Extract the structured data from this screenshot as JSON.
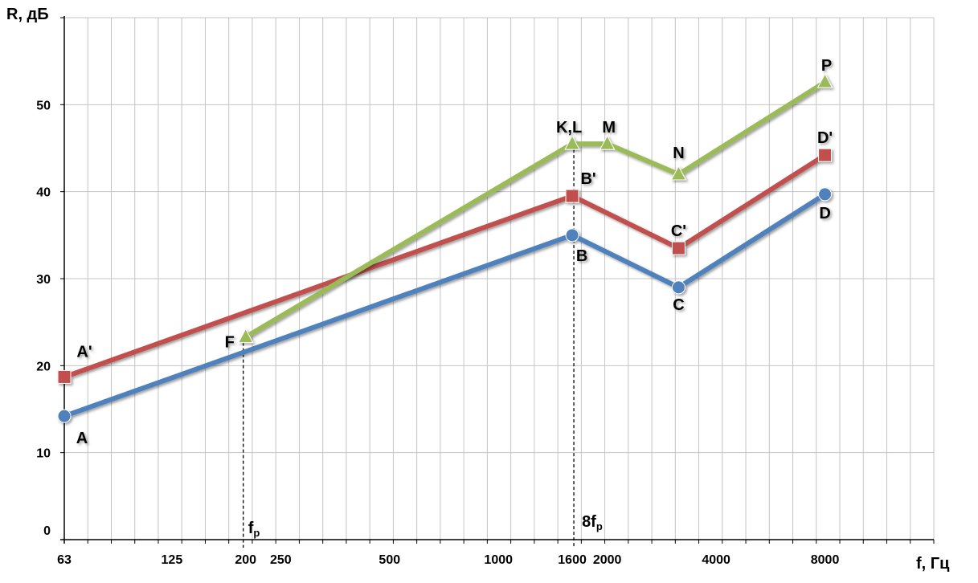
{
  "chart_data": {
    "type": "line",
    "xlabel": "f, Гц",
    "ylabel": "R, дБ",
    "x_scale": "log",
    "xlim": [
      63,
      16000
    ],
    "ylim": [
      0,
      60
    ],
    "grid": true,
    "x_ticks": [
      {
        "value": 63,
        "label": "63"
      },
      {
        "value": 125,
        "label": "125"
      },
      {
        "value": 200,
        "label": "200"
      },
      {
        "value": 250,
        "label": "250"
      },
      {
        "value": 500,
        "label": "500"
      },
      {
        "value": 1000,
        "label": "1000"
      },
      {
        "value": 1600,
        "label": "1600"
      },
      {
        "value": 2000,
        "label": "2000"
      },
      {
        "value": 4000,
        "label": "4000"
      },
      {
        "value": 8000,
        "label": "8000"
      }
    ],
    "y_ticks": [
      0,
      10,
      20,
      30,
      40,
      50
    ],
    "series": [
      {
        "color": "#4f81bd",
        "marker": "circle",
        "points": [
          {
            "x": 63,
            "y": 14.2,
            "label": "A"
          },
          {
            "x": 1600,
            "y": 35.0,
            "label": "B"
          },
          {
            "x": 3150,
            "y": 29.0,
            "label": "C"
          },
          {
            "x": 8000,
            "y": 39.7,
            "label": "D"
          }
        ]
      },
      {
        "color": "#c0504d",
        "marker": "square",
        "points": [
          {
            "x": 63,
            "y": 18.7,
            "label": "A'"
          },
          {
            "x": 1600,
            "y": 39.5,
            "label": "B'"
          },
          {
            "x": 3150,
            "y": 33.5,
            "label": "C'"
          },
          {
            "x": 8000,
            "y": 44.2,
            "label": "D'"
          }
        ]
      },
      {
        "color": "#9bbb59",
        "marker": "triangle",
        "points": [
          {
            "x": 200,
            "y": 23.3,
            "label": "F"
          },
          {
            "x": 1600,
            "y": 45.5,
            "label": "K,L"
          },
          {
            "x": 2000,
            "y": 45.5,
            "label": "M"
          },
          {
            "x": 3150,
            "y": 42.0,
            "label": "N"
          },
          {
            "x": 8000,
            "y": 52.6,
            "label": "P"
          }
        ]
      }
    ],
    "annotations": [
      {
        "x": 200,
        "text": "f",
        "sub": "р"
      },
      {
        "x": 1600,
        "text": "8f",
        "sub": "р"
      }
    ]
  }
}
